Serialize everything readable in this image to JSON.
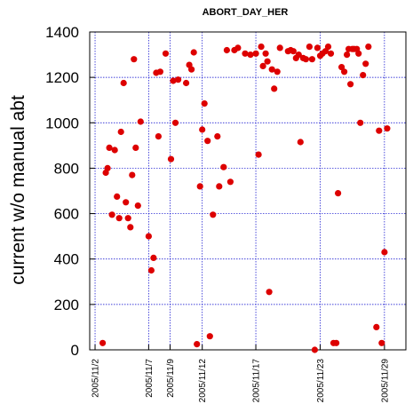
{
  "chart_data": {
    "type": "scatter",
    "title": "ABORT_DAY_HER",
    "xlabel": "",
    "ylabel": "current w/o manual abt",
    "x_type": "date",
    "xlim": [
      "2005-11-01T12:00",
      "2005-12-01T00:00"
    ],
    "ylim": [
      0,
      1400
    ],
    "y_ticks": [
      0,
      200,
      400,
      600,
      800,
      1000,
      1200,
      1400
    ],
    "x_ticks": [
      {
        "label": "2005/11/2",
        "x": "2005-11-02T00:00"
      },
      {
        "label": "2005/11/7",
        "x": "2005-11-07T00:00"
      },
      {
        "label": "2005/11/9",
        "x": "2005-11-09T00:00"
      },
      {
        "label": "2005/11/12",
        "x": "2005-11-12T00:00"
      },
      {
        "label": "2005/11/17",
        "x": "2005-11-17T00:00"
      },
      {
        "label": "2005/11/23",
        "x": "2005-11-23T00:00"
      },
      {
        "label": "2005/11/29",
        "x": "2005-11-29T00:00"
      }
    ],
    "grid": true,
    "marker_color": "#dd0000",
    "grid_color": "#0000cc",
    "series": [
      {
        "points": [
          [
            "2005-11-02T17:00",
            30
          ],
          [
            "2005-11-03T00:00",
            780
          ],
          [
            "2005-11-03T04:00",
            800
          ],
          [
            "2005-11-03T08:00",
            890
          ],
          [
            "2005-11-03T14:00",
            595
          ],
          [
            "2005-11-03T20:00",
            880
          ],
          [
            "2005-11-04T01:00",
            675
          ],
          [
            "2005-11-04T06:00",
            580
          ],
          [
            "2005-11-04T10:00",
            960
          ],
          [
            "2005-11-04T16:00",
            1175
          ],
          [
            "2005-11-04T21:00",
            650
          ],
          [
            "2005-11-05T02:00",
            580
          ],
          [
            "2005-11-05T07:00",
            540
          ],
          [
            "2005-11-05T11:00",
            770
          ],
          [
            "2005-11-05T15:00",
            1280
          ],
          [
            "2005-11-05T19:00",
            890
          ],
          [
            "2005-11-06T00:00",
            635
          ],
          [
            "2005-11-06T06:00",
            1005
          ],
          [
            "2005-11-07T00:00",
            500
          ],
          [
            "2005-11-07T06:00",
            350
          ],
          [
            "2005-11-07T11:00",
            405
          ],
          [
            "2005-11-07T17:00",
            1220
          ],
          [
            "2005-11-07T22:00",
            940
          ],
          [
            "2005-11-08T02:00",
            1225
          ],
          [
            "2005-11-08T14:00",
            1305
          ],
          [
            "2005-11-09T02:00",
            840
          ],
          [
            "2005-11-09T07:00",
            1185
          ],
          [
            "2005-11-09T12:00",
            1000
          ],
          [
            "2005-11-09T18:00",
            1190
          ],
          [
            "2005-11-10T12:00",
            1175
          ],
          [
            "2005-11-10T19:00",
            1255
          ],
          [
            "2005-11-11T00:00",
            1235
          ],
          [
            "2005-11-11T05:00",
            1310
          ],
          [
            "2005-11-11T12:00",
            25
          ],
          [
            "2005-11-11T19:00",
            720
          ],
          [
            "2005-11-12T00:00",
            970
          ],
          [
            "2005-11-12T05:00",
            1085
          ],
          [
            "2005-11-12T12:00",
            920
          ],
          [
            "2005-11-12T17:00",
            60
          ],
          [
            "2005-11-13T00:00",
            595
          ],
          [
            "2005-11-13T10:00",
            940
          ],
          [
            "2005-11-13T14:00",
            720
          ],
          [
            "2005-11-14T00:00",
            805
          ],
          [
            "2005-11-14T07:00",
            1320
          ],
          [
            "2005-11-14T15:00",
            740
          ],
          [
            "2005-11-15T00:00",
            1320
          ],
          [
            "2005-11-15T08:00",
            1330
          ],
          [
            "2005-11-16T00:00",
            1305
          ],
          [
            "2005-11-16T12:00",
            1300
          ],
          [
            "2005-11-17T00:00",
            1305
          ],
          [
            "2005-11-17T06:00",
            860
          ],
          [
            "2005-11-17T12:00",
            1335
          ],
          [
            "2005-11-17T16:00",
            1250
          ],
          [
            "2005-11-17T22:00",
            1305
          ],
          [
            "2005-11-18T02:00",
            1270
          ],
          [
            "2005-11-18T06:00",
            255
          ],
          [
            "2005-11-18T12:00",
            1235
          ],
          [
            "2005-11-18T17:00",
            1150
          ],
          [
            "2005-11-19T00:00",
            1225
          ],
          [
            "2005-11-19T06:00",
            1330
          ],
          [
            "2005-11-20T00:00",
            1315
          ],
          [
            "2005-11-20T06:00",
            1320
          ],
          [
            "2005-11-20T12:00",
            1315
          ],
          [
            "2005-11-20T18:00",
            1285
          ],
          [
            "2005-11-21T00:00",
            1300
          ],
          [
            "2005-11-21T04:00",
            915
          ],
          [
            "2005-11-21T10:00",
            1285
          ],
          [
            "2005-11-21T16:00",
            1280
          ],
          [
            "2005-11-22T00:00",
            1335
          ],
          [
            "2005-11-22T06:00",
            1280
          ],
          [
            "2005-11-22T12:00",
            0
          ],
          [
            "2005-11-22T18:00",
            1330
          ],
          [
            "2005-11-23T00:00",
            1295
          ],
          [
            "2005-11-23T05:00",
            1305
          ],
          [
            "2005-11-23T12:00",
            1315
          ],
          [
            "2005-11-23T18:00",
            1335
          ],
          [
            "2005-11-24T00:00",
            1305
          ],
          [
            "2005-11-24T06:00",
            30
          ],
          [
            "2005-11-24T12:00",
            30
          ],
          [
            "2005-11-24T16:00",
            690
          ],
          [
            "2005-11-25T00:00",
            1245
          ],
          [
            "2005-11-25T06:00",
            1225
          ],
          [
            "2005-11-25T12:00",
            1300
          ],
          [
            "2005-11-25T16:00",
            1325
          ],
          [
            "2005-11-25T20:00",
            1170
          ],
          [
            "2005-11-26T00:00",
            1325
          ],
          [
            "2005-11-26T04:00",
            1325
          ],
          [
            "2005-11-26T10:00",
            1325
          ],
          [
            "2005-11-26T14:00",
            1305
          ],
          [
            "2005-11-26T18:00",
            1000
          ],
          [
            "2005-11-27T00:00",
            1210
          ],
          [
            "2005-11-27T06:00",
            1260
          ],
          [
            "2005-11-27T12:00",
            1335
          ],
          [
            "2005-11-28T06:00",
            100
          ],
          [
            "2005-11-28T12:00",
            965
          ],
          [
            "2005-11-28T18:00",
            30
          ],
          [
            "2005-11-29T00:00",
            430
          ],
          [
            "2005-11-29T06:00",
            975
          ]
        ]
      }
    ]
  }
}
